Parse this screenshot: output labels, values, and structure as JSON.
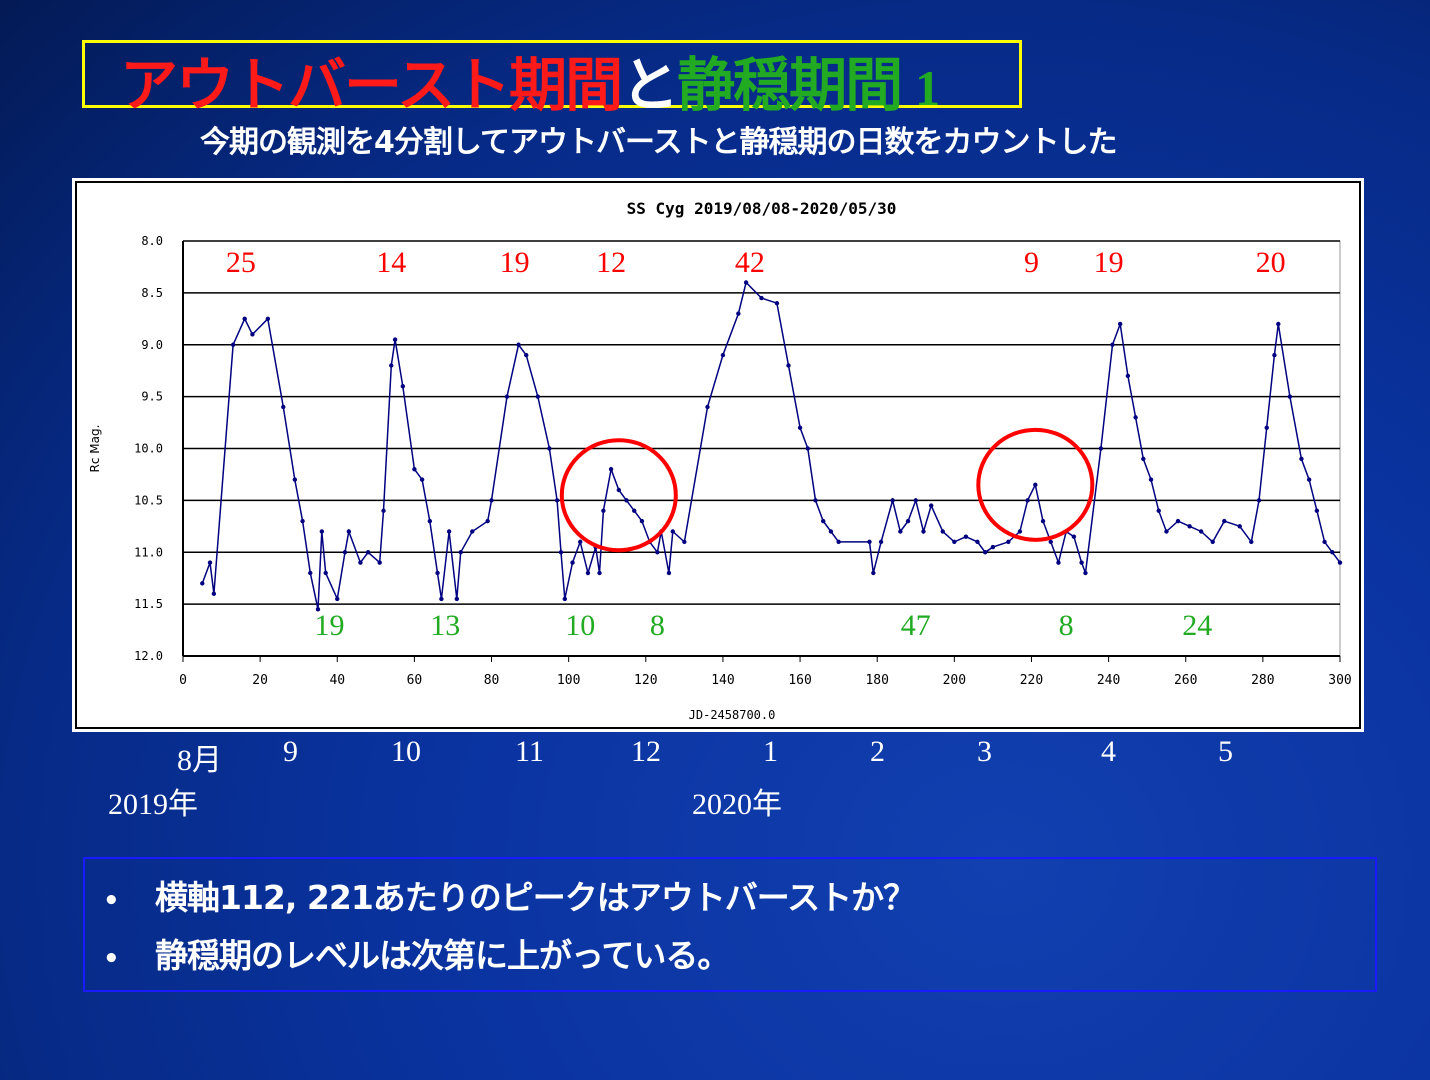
{
  "slide": {
    "title_parts": [
      "アウトバースト期間",
      "と",
      "静穏期間",
      "1"
    ],
    "subtitle": "今期の観測を4分割してアウトバーストと静穏期の日数をカウントした",
    "months": [
      "8月",
      "9",
      "10",
      "11",
      "12",
      "1",
      "2",
      "3",
      "4",
      "5"
    ],
    "years": [
      "2019年",
      "2020年"
    ],
    "notes": [
      "横軸112, 221あたりのピークはアウトバーストか？",
      "静穏期のレベルは次第に上がっている。"
    ],
    "bullet": "•"
  },
  "colors": {
    "title_outburst": "#ff1a1a",
    "title_quiet": "#22aa22",
    "line": "#000080",
    "circle": "#ff0000",
    "outburst_label": "#ff0000",
    "quiescent_label": "#22aa22",
    "title_border": "#ffff00"
  },
  "chart_data": {
    "type": "line",
    "title": "SS Cyg  2019/08/08-2020/05/30",
    "xlabel": "JD-2458700.0",
    "ylabel": "Rc Mag.",
    "xlim": [
      0,
      300
    ],
    "ylim": [
      12.0,
      8.0
    ],
    "y_inverted": true,
    "grid": "horizontal",
    "xticks": [
      "0",
      "20",
      "40",
      "60",
      "80",
      "100",
      "120",
      "140",
      "160",
      "180",
      "200",
      "220",
      "240",
      "260",
      "280",
      "300"
    ],
    "yticks": [
      "8.0",
      "8.5",
      "9.0",
      "9.5",
      "10.0",
      "10.5",
      "11.0",
      "11.5",
      "12.0"
    ],
    "series": [
      {
        "x": [
          5,
          7,
          8,
          13,
          16,
          18,
          22,
          26,
          29,
          31,
          33,
          35,
          36,
          37,
          40,
          42,
          43,
          46,
          48,
          51,
          52,
          54,
          55,
          57,
          60,
          62,
          64,
          66,
          67,
          69,
          71,
          72,
          75,
          79,
          80,
          84,
          87,
          89,
          92,
          95,
          97,
          98,
          99,
          101,
          103,
          105,
          107,
          108,
          109,
          111,
          113,
          115,
          117,
          119,
          121,
          123,
          124,
          126,
          127,
          130,
          136,
          140,
          144,
          146,
          150,
          154,
          157,
          160,
          162,
          164,
          166,
          168,
          170,
          178,
          179,
          181,
          184,
          186,
          188,
          190,
          192,
          194,
          197,
          200,
          203,
          206,
          208,
          210,
          214,
          217,
          219,
          221,
          223,
          225,
          227,
          229,
          231,
          233,
          234,
          238,
          241,
          243,
          245,
          247,
          249,
          251,
          253,
          255,
          258,
          261,
          264,
          267,
          270,
          274,
          277,
          279,
          281,
          283,
          284,
          287,
          290,
          292,
          294,
          296,
          298,
          300
        ],
        "y": [
          11.3,
          11.1,
          11.4,
          9.0,
          8.75,
          8.9,
          8.75,
          9.6,
          10.3,
          10.7,
          11.2,
          11.55,
          10.8,
          11.2,
          11.45,
          11.0,
          10.8,
          11.1,
          11.0,
          11.1,
          10.6,
          9.2,
          8.95,
          9.4,
          10.2,
          10.3,
          10.7,
          11.2,
          11.45,
          10.8,
          11.45,
          11.0,
          10.8,
          10.7,
          10.5,
          9.5,
          9.0,
          9.1,
          9.5,
          10.0,
          10.5,
          11.0,
          11.45,
          11.1,
          10.9,
          11.2,
          10.95,
          11.2,
          10.6,
          10.2,
          10.4,
          10.5,
          10.6,
          10.7,
          10.9,
          11.0,
          10.8,
          11.2,
          10.8,
          10.9,
          9.6,
          9.1,
          8.7,
          8.4,
          8.55,
          8.6,
          9.2,
          9.8,
          10.0,
          10.5,
          10.7,
          10.8,
          10.9,
          10.9,
          11.2,
          10.9,
          10.5,
          10.8,
          10.7,
          10.5,
          10.8,
          10.55,
          10.8,
          10.9,
          10.85,
          10.9,
          11.0,
          10.95,
          10.9,
          10.8,
          10.5,
          10.35,
          10.7,
          10.9,
          11.1,
          10.8,
          10.85,
          11.1,
          11.2,
          10.0,
          9.0,
          8.8,
          9.3,
          9.7,
          10.1,
          10.3,
          10.6,
          10.8,
          10.7,
          10.75,
          10.8,
          10.9,
          10.7,
          10.75,
          10.9,
          10.5,
          9.8,
          9.1,
          8.8,
          9.5,
          10.1,
          10.3,
          10.6,
          10.9,
          11.0,
          11.1
        ]
      }
    ],
    "annotations": {
      "outburst_days": [
        {
          "x": 15,
          "text": "25"
        },
        {
          "x": 54,
          "text": "14"
        },
        {
          "x": 86,
          "text": "19"
        },
        {
          "x": 111,
          "text": "12"
        },
        {
          "x": 147,
          "text": "42"
        },
        {
          "x": 220,
          "text": "9"
        },
        {
          "x": 240,
          "text": "19"
        },
        {
          "x": 282,
          "text": "20"
        }
      ],
      "quiescent_days": [
        {
          "x": 38,
          "text": "19"
        },
        {
          "x": 68,
          "text": "13"
        },
        {
          "x": 103,
          "text": "10"
        },
        {
          "x": 123,
          "text": "8"
        },
        {
          "x": 190,
          "text": "47"
        },
        {
          "x": 229,
          "text": "8"
        },
        {
          "x": 263,
          "text": "24"
        }
      ],
      "circles": [
        {
          "x": 113,
          "y": 10.45
        },
        {
          "x": 221,
          "y": 10.35
        }
      ]
    }
  }
}
